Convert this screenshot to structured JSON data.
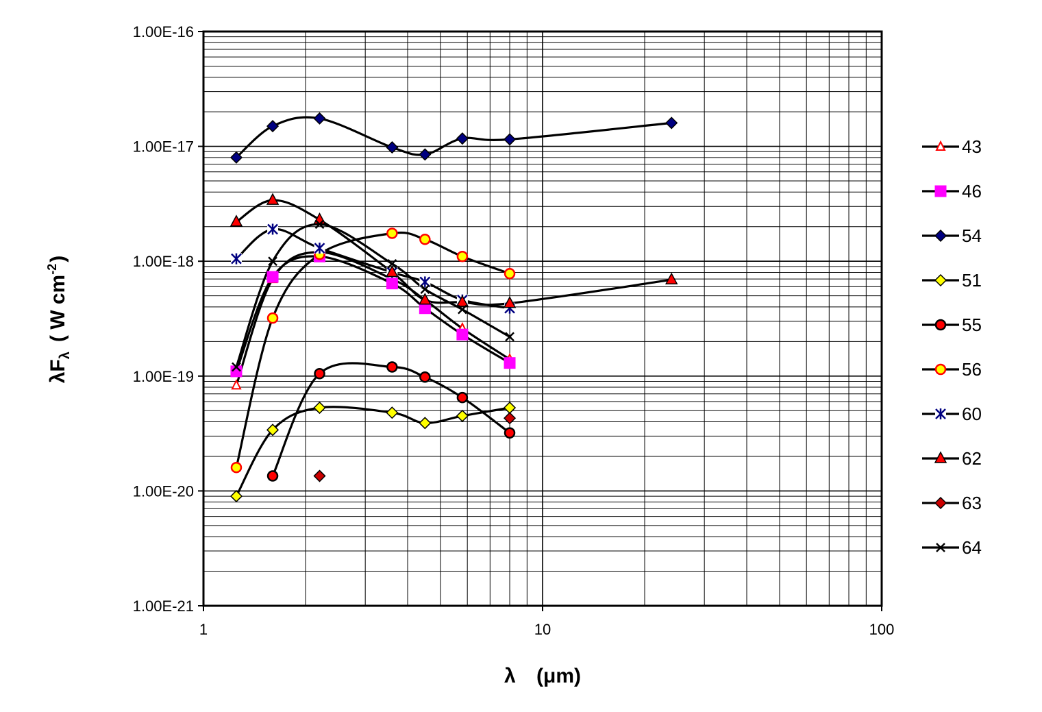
{
  "chart_data": {
    "type": "line",
    "title": "",
    "xscale": "log",
    "yscale": "log",
    "xlim": [
      1,
      100
    ],
    "ylim": [
      1e-21,
      1e-16
    ],
    "grid": true,
    "legend_position": "right",
    "xlabel": {
      "lambda": "λ",
      "units": "(μm)"
    },
    "ylabel": {
      "lambda": "λ",
      "f": "F",
      "sub": "λ",
      "units": "( W cm",
      "sup": "-2",
      "close": ")"
    },
    "x_tick_labels": [
      {
        "value": 1,
        "label": "1"
      },
      {
        "value": 10,
        "label": "10"
      },
      {
        "value": 100,
        "label": "100"
      }
    ],
    "y_tick_labels": [
      {
        "value": 1e-16,
        "label": "1.00E-16"
      },
      {
        "value": 1e-17,
        "label": "1.00E-17"
      },
      {
        "value": 1e-18,
        "label": "1.00E-18"
      },
      {
        "value": 1e-19,
        "label": "1.00E-19"
      },
      {
        "value": 1e-20,
        "label": "1.00E-20"
      },
      {
        "value": 1e-21,
        "label": "1.00E-21"
      }
    ],
    "series": [
      {
        "name": "43",
        "marker": "triangle-open",
        "color": "#ff0000",
        "fill": "#ffffff",
        "x": [
          1.25,
          1.6,
          2.2,
          3.6,
          4.5,
          5.8,
          8.0
        ],
        "y": [
          8.3e-20,
          7e-19,
          1.2e-18,
          7e-19,
          4.6e-19,
          2.6e-19,
          1.4e-19
        ]
      },
      {
        "name": "46",
        "marker": "square",
        "color": "#ff00ff",
        "fill": "#ff00ff",
        "x": [
          1.25,
          1.6,
          2.2,
          3.6,
          4.5,
          5.8,
          8.0
        ],
        "y": [
          1.1e-19,
          7.3e-19,
          1.1e-18,
          6.4e-19,
          3.9e-19,
          2.3e-19,
          1.3e-19
        ]
      },
      {
        "name": "54",
        "marker": "diamond",
        "color": "#000080",
        "fill": "#000080",
        "x": [
          1.25,
          1.6,
          2.2,
          3.6,
          4.5,
          5.8,
          8.0,
          24.0
        ],
        "y": [
          8e-18,
          1.5e-17,
          1.75e-17,
          9.8e-18,
          8.5e-18,
          1.17e-17,
          1.15e-17,
          1.6e-17
        ]
      },
      {
        "name": "51",
        "marker": "diamond",
        "color": "#000000",
        "fill": "#ffff00",
        "x": [
          1.25,
          1.6,
          2.2,
          3.6,
          4.5,
          5.8,
          8.0
        ],
        "y": [
          9e-21,
          3.4e-20,
          5.3e-20,
          4.8e-20,
          3.9e-20,
          4.5e-20,
          5.3e-20
        ]
      },
      {
        "name": "55",
        "marker": "circle",
        "color": "#000000",
        "fill": "#ff0000",
        "x": [
          1.6,
          2.2,
          3.6,
          4.5,
          5.8,
          8.0
        ],
        "y": [
          1.35e-20,
          1.05e-19,
          1.2e-19,
          9.8e-20,
          6.5e-20,
          3.2e-20
        ]
      },
      {
        "name": "56",
        "marker": "circle",
        "color": "#ff0000",
        "fill": "#ffff00",
        "x": [
          1.25,
          1.6,
          2.2,
          3.6,
          4.5,
          5.8,
          8.0
        ],
        "y": [
          1.6e-20,
          3.2e-19,
          1.15e-18,
          1.75e-18,
          1.55e-18,
          1.1e-18,
          7.8e-19
        ]
      },
      {
        "name": "60",
        "marker": "asterisk",
        "color": "#000080",
        "fill": "#ffffff",
        "x": [
          1.25,
          1.6,
          2.2,
          3.6,
          4.5,
          5.8,
          8.0
        ],
        "y": [
          1.05e-18,
          1.9e-18,
          1.3e-18,
          8e-19,
          6.6e-19,
          4.6e-19,
          3.9e-19
        ]
      },
      {
        "name": "62",
        "marker": "triangle",
        "color": "#000000",
        "fill": "#ff0000",
        "x": [
          1.25,
          1.6,
          2.2,
          3.6,
          4.5,
          5.8,
          8.0,
          24.0
        ],
        "y": [
          2.2e-18,
          3.4e-18,
          2.3e-18,
          8e-19,
          4.6e-19,
          4.4e-19,
          4.3e-19,
          6.9e-19
        ]
      },
      {
        "name": "63",
        "marker": "diamond",
        "color": "#000000",
        "fill": "#cc0000",
        "x": [
          2.2,
          8.0
        ],
        "y": [
          1.35e-20,
          4.3e-20
        ],
        "connected": false
      },
      {
        "name": "64",
        "marker": "x",
        "color": "#000000",
        "fill": "#000000",
        "x": [
          1.25,
          1.6,
          2.2,
          3.6,
          4.5,
          5.8,
          8.0
        ],
        "y": [
          1.2e-19,
          1e-18,
          2.1e-18,
          9.5e-19,
          5.7e-19,
          3.8e-19,
          2.2e-19
        ]
      }
    ]
  }
}
